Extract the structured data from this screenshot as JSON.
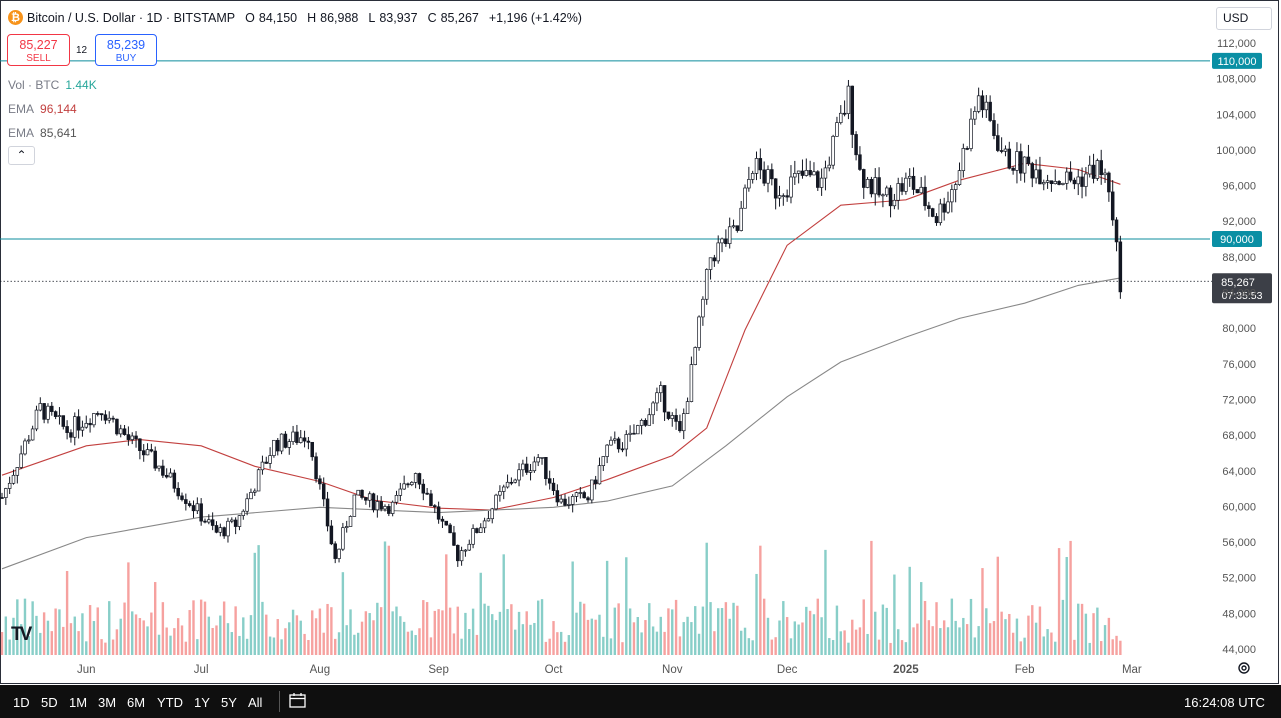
{
  "header": {
    "logo_glyph": "₿",
    "title": "Bitcoin / U.S. Dollar · 1D · BITSTAMP",
    "open_k": "O",
    "open": "84,150",
    "high_k": "H",
    "high": "86,988",
    "low_k": "L",
    "low": "83,937",
    "close_k": "C",
    "close": "85,267",
    "change": "+1,196 (+1.42%)"
  },
  "trade": {
    "sell_price": "85,227",
    "sell_label": "SELL",
    "spread": "12",
    "buy_price": "85,239",
    "buy_label": "BUY"
  },
  "indicators": [
    {
      "name": "Vol · BTC",
      "value": "1.44K",
      "color": "#26a69a"
    },
    {
      "name": "EMA",
      "value": "96,144",
      "color": "#c2403f"
    },
    {
      "name": "EMA",
      "value": "85,641",
      "color": "#555555"
    }
  ],
  "collapse_glyph": "⌃",
  "currency": "USD",
  "tv_logo": "TV",
  "settings_icon": "gear-icon",
  "price_tags": {
    "resistance_high": "110,000",
    "resistance_mid": "90,000",
    "last_price": "85,267",
    "countdown": "07:35:53"
  },
  "bottom_bar": {
    "timeframes": [
      "1D",
      "5D",
      "1M",
      "3M",
      "6M",
      "YTD",
      "1Y",
      "5Y",
      "All"
    ],
    "calendar_icon": "calendar-icon",
    "clock": "16:24:08 UTC"
  },
  "colors": {
    "up": "#26a69a",
    "down": "#ef5350",
    "candle": "#131722",
    "ema_fast": "#c2403f",
    "ema_slow": "#888888",
    "hline": "#0c8c9c"
  },
  "chart_data": {
    "type": "candlestick",
    "title": "Bitcoin / U.S. Dollar · 1D · BITSTAMP",
    "xlabel": "",
    "ylabel": "",
    "ylim": [
      43000,
      113500
    ],
    "y_ticks": [
      112000,
      108000,
      104000,
      100000,
      96000,
      92000,
      88000,
      84000,
      80000,
      76000,
      72000,
      68000,
      64000,
      60000,
      56000,
      52000,
      48000,
      44000
    ],
    "y_tick_labels": [
      "112,000",
      "108,000",
      "104,000",
      "100,000",
      "96,000",
      "92,000",
      "88,000",
      "84,000",
      "80,000",
      "76,000",
      "72,000",
      "68,000",
      "64,000",
      "60,000",
      "56,000",
      "52,000",
      "48,000",
      "44,000"
    ],
    "x_ticks": [
      {
        "label": "Jun",
        "date": "2024-06-01"
      },
      {
        "label": "Jul",
        "date": "2024-07-01"
      },
      {
        "label": "Aug",
        "date": "2024-08-01"
      },
      {
        "label": "Sep",
        "date": "2024-09-01"
      },
      {
        "label": "Oct",
        "date": "2024-10-01"
      },
      {
        "label": "Nov",
        "date": "2024-11-01"
      },
      {
        "label": "Dec",
        "date": "2024-12-01"
      },
      {
        "label": "2025",
        "date": "2025-01-01"
      },
      {
        "label": "Feb",
        "date": "2025-02-01"
      },
      {
        "label": "Mar",
        "date": "2025-03-01"
      }
    ],
    "date_range": [
      "2024-05-10",
      "2025-02-26"
    ],
    "horizontal_lines": [
      110000,
      90000
    ],
    "last_price": 85267,
    "close_series": {
      "dates": [
        "2024-05-10",
        "2024-05-15",
        "2024-05-20",
        "2024-05-27",
        "2024-06-05",
        "2024-06-12",
        "2024-06-20",
        "2024-06-28",
        "2024-07-05",
        "2024-07-10",
        "2024-07-20",
        "2024-07-29",
        "2024-08-05",
        "2024-08-10",
        "2024-08-20",
        "2024-08-26",
        "2024-09-06",
        "2024-09-12",
        "2024-09-20",
        "2024-09-27",
        "2024-10-03",
        "2024-10-10",
        "2024-10-15",
        "2024-10-21",
        "2024-10-29",
        "2024-11-03",
        "2024-11-06",
        "2024-11-11",
        "2024-11-13",
        "2024-11-18",
        "2024-11-22",
        "2024-11-28",
        "2024-12-05",
        "2024-12-10",
        "2024-12-17",
        "2024-12-20",
        "2024-12-26",
        "2025-01-02",
        "2025-01-09",
        "2025-01-14",
        "2025-01-20",
        "2025-01-27",
        "2025-02-03",
        "2025-02-08",
        "2025-02-14",
        "2025-02-20",
        "2025-02-23",
        "2025-02-24",
        "2025-02-25",
        "2025-02-26"
      ],
      "close": [
        61000,
        66000,
        71000,
        68500,
        71000,
        67500,
        64500,
        60500,
        57000,
        58000,
        67000,
        68000,
        54000,
        61000,
        60000,
        64000,
        54500,
        58000,
        63000,
        65500,
        60500,
        61000,
        66500,
        67500,
        72500,
        68000,
        75000,
        88000,
        89000,
        91000,
        98500,
        95500,
        97000,
        96500,
        106000,
        97500,
        94500,
        96500,
        92500,
        96500,
        106000,
        99000,
        98000,
        97000,
        96500,
        98000,
        96000,
        91500,
        88500,
        85267
      ]
    },
    "series": [
      {
        "name": "EMA",
        "label_value": "96,144",
        "dates": [
          "2024-05-10",
          "2024-06-01",
          "2024-06-15",
          "2024-07-01",
          "2024-07-15",
          "2024-08-01",
          "2024-08-15",
          "2024-09-01",
          "2024-09-15",
          "2024-10-01",
          "2024-10-15",
          "2024-11-01",
          "2024-11-10",
          "2024-11-20",
          "2024-12-01",
          "2024-12-15",
          "2025-01-01",
          "2025-01-15",
          "2025-02-01",
          "2025-02-15",
          "2025-02-26"
        ],
        "values": [
          63500,
          66800,
          67500,
          66800,
          64500,
          62800,
          60700,
          59800,
          59600,
          61000,
          63000,
          65700,
          68800,
          79800,
          89300,
          93800,
          94400,
          96600,
          98500,
          97800,
          96144
        ]
      },
      {
        "name": "EMA",
        "label_value": "85,641",
        "dates": [
          "2024-05-10",
          "2024-06-01",
          "2024-07-01",
          "2024-08-01",
          "2024-09-01",
          "2024-10-01",
          "2024-10-15",
          "2024-11-01",
          "2024-11-15",
          "2024-12-01",
          "2024-12-15",
          "2025-01-01",
          "2025-01-15",
          "2025-02-01",
          "2025-02-15",
          "2025-02-26"
        ],
        "values": [
          53000,
          56500,
          58800,
          59900,
          59300,
          59900,
          60600,
          62300,
          66800,
          72300,
          76200,
          79000,
          81100,
          82800,
          84800,
          85641
        ]
      }
    ],
    "volume_axis": "none",
    "legend": "top-left"
  }
}
